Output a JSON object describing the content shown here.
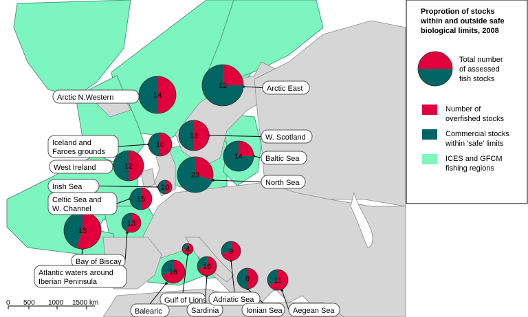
{
  "colors": {
    "overfished": "#e1003c",
    "safe": "#006563",
    "region": "#7df5c0",
    "land": "#d6d6d6",
    "sea": "#ffffff",
    "border": "#8c8c8c"
  },
  "legend": {
    "title_lines": [
      "Proprotion of stocks",
      "within and outside safe",
      "biological limits, 2008"
    ],
    "total_lines": [
      "Total number",
      "of assessed",
      "fish stocks"
    ],
    "overfished_lines": [
      "Number of",
      "overfished stocks"
    ],
    "safe_lines": [
      "Commercial stocks",
      "within 'safe' limits"
    ],
    "region_lines": [
      "ICES and GFCM",
      "fishing regions"
    ]
  },
  "scale_bar": {
    "ticks": [
      "0",
      "500",
      "1000",
      "1500 km"
    ]
  },
  "stocks": [
    {
      "id": "arctic-nw",
      "label_lines": [
        "Arctic N.Western"
      ],
      "total": 14,
      "overfished_fraction": 0.5
    },
    {
      "id": "arctic-east",
      "label_lines": [
        "Arctic East"
      ],
      "total": 12,
      "overfished_fraction": 0.25
    },
    {
      "id": "iceland-faroes",
      "label_lines": [
        "Iceland and",
        "Faroes grounds"
      ],
      "total": 10,
      "overfished_fraction": 0.5
    },
    {
      "id": "w-scotland",
      "label_lines": [
        "W. Scotland"
      ],
      "total": 13,
      "overfished_fraction": 0.5
    },
    {
      "id": "west-ireland",
      "label_lines": [
        "West Ireland"
      ],
      "total": 12,
      "overfished_fraction": 0.5
    },
    {
      "id": "baltic",
      "label_lines": [
        "Baltic Sea"
      ],
      "total": 14,
      "overfished_fraction": 0.25
    },
    {
      "id": "north-sea",
      "label_lines": [
        "North Sea"
      ],
      "total": 23,
      "overfished_fraction": 0.3
    },
    {
      "id": "irish-sea",
      "label_lines": [
        "Irish Sea"
      ],
      "total": 10,
      "overfished_fraction": 0.5
    },
    {
      "id": "celtic",
      "label_lines": [
        "Celtic Sea and",
        "W. Channel"
      ],
      "total": 15,
      "overfished_fraction": 0.5
    },
    {
      "id": "biscay",
      "label_lines": [
        "Bay of Biscay"
      ],
      "total": 13,
      "overfished_fraction": 0.6
    },
    {
      "id": "atlantic-iberian",
      "label_lines": [
        "Atlantic waters around",
        "Iberian Peninsula"
      ],
      "total": 13,
      "overfished_fraction": 0.55
    },
    {
      "id": "gulf-lions",
      "label_lines": [
        "Gulf of Lions"
      ],
      "total": 4,
      "overfished_fraction": 0.75
    },
    {
      "id": "balearic",
      "label_lines": [
        "Balearic"
      ],
      "total": 16,
      "overfished_fraction": 0.7
    },
    {
      "id": "sardinia",
      "label_lines": [
        "Sardinia"
      ],
      "total": 16,
      "overfished_fraction": 0.7
    },
    {
      "id": "adriatic",
      "label_lines": [
        "Adriatic Sea"
      ],
      "total": 9,
      "overfished_fraction": 0.7
    },
    {
      "id": "ionian",
      "label_lines": [
        "Ionian Sea"
      ],
      "total": 8,
      "overfished_fraction": 0.5
    },
    {
      "id": "aegean",
      "label_lines": [
        "Aegean Sea"
      ],
      "total": 11,
      "overfished_fraction": 0.65
    }
  ]
}
